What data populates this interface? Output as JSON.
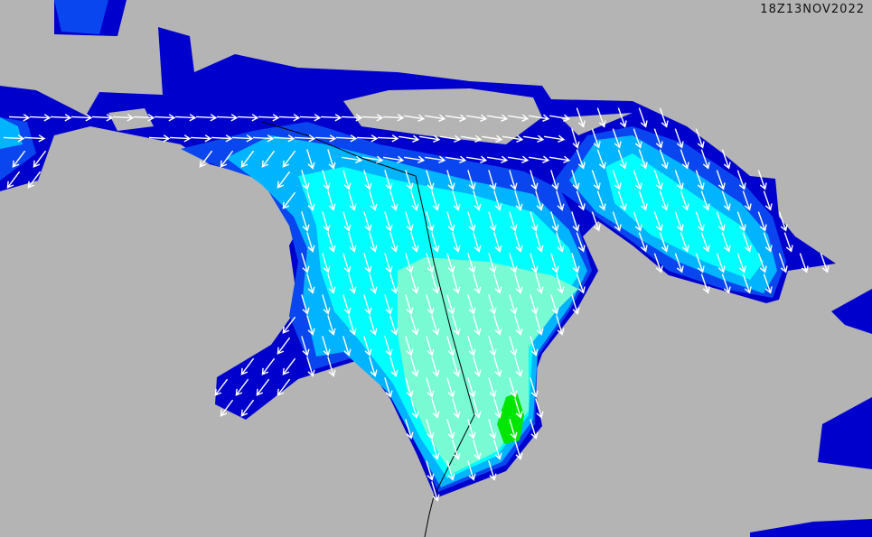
{
  "timestamp": "18Z13NOV2022",
  "colors": {
    "land": "#b4b4b4",
    "level_1": "#0000cd",
    "level_2": "#0a46f0",
    "level_3": "#00b4ff",
    "level_4": "#00ffff",
    "level_5": "#78fad2",
    "level_6": "#00e600",
    "arrow": "#ffffff",
    "border": "#000000"
  },
  "legend_visible": false,
  "arrow_field": "white-vector-arrows"
}
